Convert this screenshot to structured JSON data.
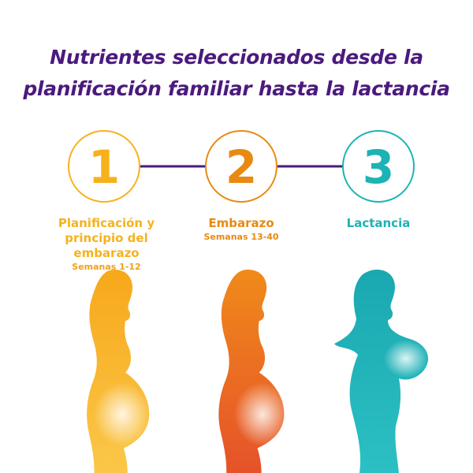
{
  "title": {
    "line1": "Nutrientes seleccionados desde la",
    "line2": "planificación familiar hasta la lactancia"
  },
  "colors": {
    "title": "#4b1a7d",
    "connector": "#4b1a7d",
    "stage1": "#f6b21c",
    "stage2": "#e88a12",
    "stage3": "#1cb3b5"
  },
  "stages": [
    {
      "number": "1",
      "label_line1": "Planificación y",
      "label_line2": "principio del embarazo",
      "weeks": "Semanas 1-12",
      "figure": "pregnant-woman-silhouette"
    },
    {
      "number": "2",
      "label_line1": "Embarazo",
      "weeks": "Semanas 13-40",
      "figure": "pregnant-woman-silhouette"
    },
    {
      "number": "3",
      "label_line1": "Lactancia",
      "figure": "mother-holding-baby-silhouette"
    }
  ]
}
